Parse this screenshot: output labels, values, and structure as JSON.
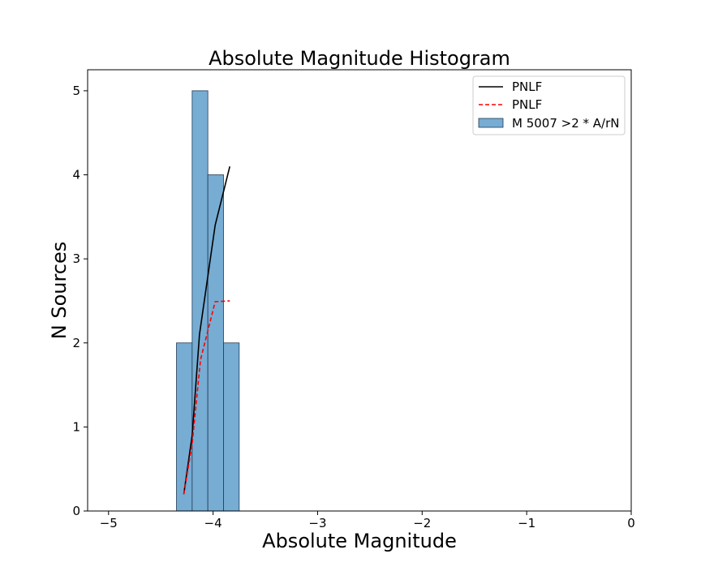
{
  "chart_data": {
    "type": "bar",
    "title": "Absolute Magnitude Histogram",
    "xlabel": "Absolute Magnitude",
    "ylabel": "N Sources",
    "xlim": [
      -5.2,
      0
    ],
    "ylim": [
      0,
      5.25
    ],
    "xticks": [
      -5,
      -4,
      -3,
      -2,
      -1,
      0
    ],
    "xtick_labels": [
      "−5",
      "−4",
      "−3",
      "−2",
      "−1",
      "0"
    ],
    "yticks": [
      0,
      1,
      2,
      3,
      4,
      5
    ],
    "ytick_labels": [
      "0",
      "1",
      "2",
      "3",
      "4",
      "5"
    ],
    "grid": false,
    "legend_position": "top-right",
    "histogram": {
      "name": "M 5007 >2 * A/rN",
      "color": "#77acd3",
      "edge_color": "#1f3b55",
      "bin_edges": [
        -4.35,
        -4.2,
        -4.05,
        -3.9,
        -3.75
      ],
      "counts": [
        2,
        5,
        4,
        2
      ]
    },
    "lines": [
      {
        "name": "PNLF",
        "color": "#000000",
        "style": "solid",
        "x": [
          -4.28,
          -4.2,
          -4.13,
          -3.98,
          -3.84
        ],
        "y": [
          0.2,
          0.9,
          2.1,
          3.4,
          4.1
        ]
      },
      {
        "name": "PNLF",
        "color": "#ff0000",
        "style": "dashed",
        "x": [
          -4.28,
          -4.2,
          -4.12,
          -3.98,
          -3.84
        ],
        "y": [
          0.2,
          0.8,
          1.8,
          2.49,
          2.5
        ]
      }
    ]
  }
}
